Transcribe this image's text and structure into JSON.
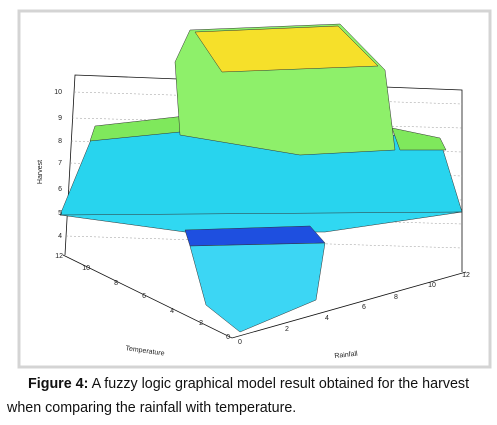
{
  "figure": {
    "z_axis": {
      "label": "Harvest",
      "ticks": [
        4,
        5,
        6,
        7,
        8,
        9,
        10
      ]
    },
    "y_axis": {
      "label": "Temperature",
      "ticks": [
        0,
        2,
        4,
        6,
        8,
        10,
        12
      ]
    },
    "x_axis": {
      "label": "Rainfall",
      "ticks": [
        0,
        2,
        4,
        6,
        8,
        10,
        12
      ]
    }
  },
  "caption": {
    "label": "Figure 4:",
    "text": "A fuzzy logic graphical model result obtained for the harvest when comparing the rainfall with temperature."
  }
}
